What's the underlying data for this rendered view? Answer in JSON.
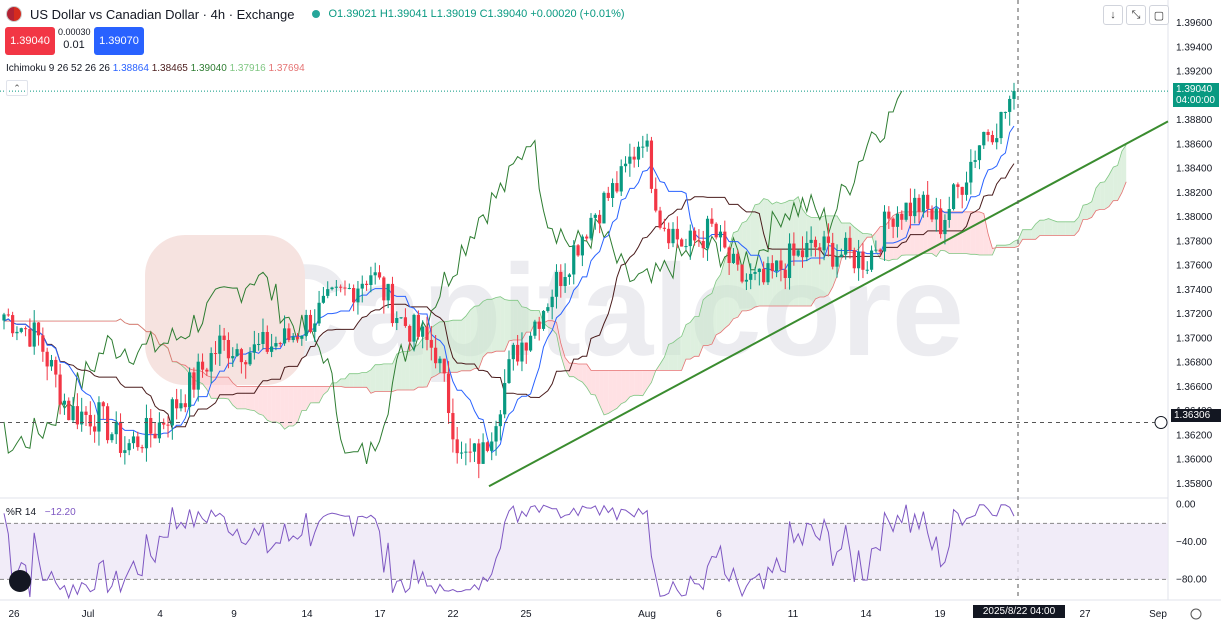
{
  "header": {
    "title": "US Dollar vs Canadian Dollar · 4h · Exchange",
    "ohlc": {
      "o": "O1.39021",
      "h": "H1.39041",
      "l": "L1.39019",
      "c": "C1.39040",
      "chg": "+0.00020 (+0.01%)"
    }
  },
  "trade": {
    "sell": "1.39040",
    "buy": "1.39070",
    "spread_top": "0.00030",
    "spread_bottom": "0.01"
  },
  "ichimoku_label": "Ichimoku 9 26 52 26 26",
  "ichimoku_values": [
    "1.38864",
    "1.38465",
    "1.39040",
    "1.37916",
    "1.37694"
  ],
  "wr_label": "%R 14",
  "wr_value": "−12.20",
  "price_label": {
    "value": "1.39040",
    "time": "04:00:00"
  },
  "crosshair_label": "1.36306",
  "date_label": "2025/8/22  04:00",
  "watermark": "Capitalcore",
  "colors": {
    "up": "#089981",
    "down": "#f23645",
    "tenkan": "#2962ff",
    "kijun": "#4a1c1c",
    "chikou": "#2e7d32",
    "cloud_up": "#c8e6c9",
    "cloud_dn": "#ffcdd2",
    "trend": "#3a8c2f",
    "wr": "#7e57c2"
  },
  "chart_data": [
    {
      "type": "candlestick",
      "title": "US Dollar vs Canadian Dollar · 4h · Exchange",
      "y_ticks": [
        "1.39600",
        "1.39400",
        "1.39200",
        "1.38800",
        "1.38600",
        "1.38400",
        "1.38200",
        "1.38000",
        "1.37800",
        "1.37600",
        "1.37400",
        "1.37200",
        "1.37000",
        "1.36800",
        "1.36600",
        "1.36400",
        "1.36200",
        "1.36000",
        "1.35800"
      ],
      "ylim": [
        1.3565,
        1.3975
      ],
      "x_ticks": [
        "26",
        "Jul",
        "4",
        "9",
        "14",
        "17",
        "22",
        "25",
        "Aug",
        "6",
        "11",
        "14",
        "19",
        "27",
        "Sep"
      ],
      "anchors": [
        {
          "i": 0,
          "p": 1.372
        },
        {
          "i": 8,
          "p": 1.37
        },
        {
          "i": 15,
          "p": 1.364
        },
        {
          "i": 22,
          "p": 1.3635
        },
        {
          "i": 28,
          "p": 1.361
        },
        {
          "i": 35,
          "p": 1.3625
        },
        {
          "i": 42,
          "p": 1.3655
        },
        {
          "i": 50,
          "p": 1.3695
        },
        {
          "i": 58,
          "p": 1.369
        },
        {
          "i": 66,
          "p": 1.37
        },
        {
          "i": 74,
          "p": 1.3725
        },
        {
          "i": 80,
          "p": 1.374
        },
        {
          "i": 85,
          "p": 1.3755
        },
        {
          "i": 92,
          "p": 1.3715
        },
        {
          "i": 100,
          "p": 1.369
        },
        {
          "i": 106,
          "p": 1.36
        },
        {
          "i": 111,
          "p": 1.3605
        },
        {
          "i": 118,
          "p": 1.3685
        },
        {
          "i": 124,
          "p": 1.372
        },
        {
          "i": 130,
          "p": 1.376
        },
        {
          "i": 136,
          "p": 1.38
        },
        {
          "i": 143,
          "p": 1.383
        },
        {
          "i": 148,
          "p": 1.387
        },
        {
          "i": 152,
          "p": 1.38
        },
        {
          "i": 158,
          "p": 1.3775
        },
        {
          "i": 164,
          "p": 1.379
        },
        {
          "i": 170,
          "p": 1.375
        },
        {
          "i": 176,
          "p": 1.3745
        },
        {
          "i": 182,
          "p": 1.3765
        },
        {
          "i": 188,
          "p": 1.3775
        },
        {
          "i": 194,
          "p": 1.377
        },
        {
          "i": 200,
          "p": 1.3765
        },
        {
          "i": 206,
          "p": 1.3805
        },
        {
          "i": 212,
          "p": 1.381
        },
        {
          "i": 217,
          "p": 1.3795
        },
        {
          "i": 222,
          "p": 1.383
        },
        {
          "i": 227,
          "p": 1.387
        },
        {
          "i": 231,
          "p": 1.388
        },
        {
          "i": 234,
          "p": 1.3904
        }
      ],
      "trendline": [
        {
          "x": "Jul 23",
          "y": 1.3578
        },
        {
          "x": "Aug 27",
          "y": 1.3885
        }
      ],
      "crosshair": {
        "y": 1.36306,
        "x": "2025/8/22 04:00"
      }
    },
    {
      "type": "line",
      "title": "%R 14",
      "y_ticks": [
        "0.00",
        "−40.00",
        "−80.00"
      ],
      "ylim": [
        -100,
        5
      ],
      "band": [
        -80,
        -20
      ],
      "last": -12.2
    }
  ]
}
